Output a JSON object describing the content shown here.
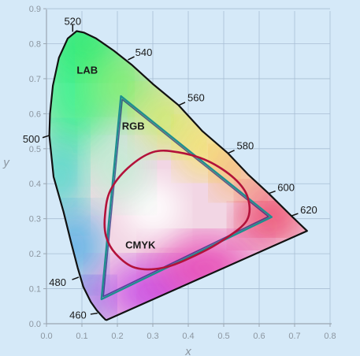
{
  "diagram": {
    "x_axis_label": "x",
    "y_axis_label": "y",
    "x_range": [
      0,
      0.8
    ],
    "y_range": [
      0,
      0.9
    ],
    "grid": true,
    "x_ticks": [
      "0.0",
      "0.1",
      "0.2",
      "0.3",
      "0.4",
      "0.5",
      "0.6",
      "0.7",
      "0.8"
    ],
    "y_ticks": [
      "0.0",
      "0.1",
      "0.2",
      "0.3",
      "0.4",
      "0.5",
      "0.6",
      "0.7",
      "0.8",
      "0.9"
    ],
    "wavelength_labels": [
      {
        "label": "460",
        "x": 0.144,
        "y": 0.03
      },
      {
        "label": "480",
        "x": 0.091,
        "y": 0.133
      },
      {
        "label": "500",
        "x": 0.008,
        "y": 0.538
      },
      {
        "label": "520",
        "x": 0.074,
        "y": 0.834
      },
      {
        "label": "540",
        "x": 0.23,
        "y": 0.754
      },
      {
        "label": "560",
        "x": 0.373,
        "y": 0.624
      },
      {
        "label": "580",
        "x": 0.512,
        "y": 0.487
      },
      {
        "label": "600",
        "x": 0.627,
        "y": 0.372
      },
      {
        "label": "620",
        "x": 0.691,
        "y": 0.308
      }
    ],
    "gamuts": [
      {
        "name": "LAB",
        "label_at": [
          0.115,
          0.715
        ]
      },
      {
        "name": "RGB",
        "label_at": [
          0.245,
          0.555
        ],
        "color": "#1e8f8f",
        "vertices": [
          [
            0.21,
            0.65
          ],
          [
            0.635,
            0.305
          ],
          [
            0.155,
            0.07
          ]
        ]
      },
      {
        "name": "CMYK",
        "label_at": [
          0.265,
          0.215
        ],
        "color": "#b3123a"
      }
    ],
    "colors": {
      "background": "#d5e9f8",
      "grid": "#a8bed4",
      "axis": "#9aa6b2",
      "tick_text": "#8c96a0",
      "outline": "#111111",
      "rgb_gamut": "#1e8f8f",
      "cmyk_gamut": "#b3123a",
      "triangle_inner": "#1a2a7a"
    }
  }
}
